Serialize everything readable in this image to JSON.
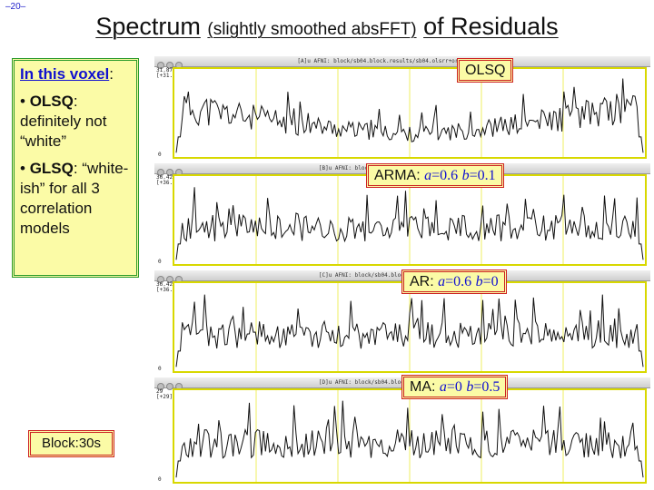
{
  "page_number": "–20–",
  "title": {
    "main": "Spectrum",
    "sub": "(slightly smoothed absFFT)",
    "tail": "of Residuals"
  },
  "note": {
    "heading": "In this voxel",
    "heading_suffix": ":",
    "items": [
      {
        "bold": "OLSQ",
        "text": ": definitely not “white”"
      },
      {
        "bold": "GLSQ",
        "text": ": “white-ish” for all 3 correlation models"
      }
    ]
  },
  "block_label": "Block:30s",
  "panels": [
    {
      "window_title": "[A]u AFNI: block/sb04.block.results/sb04.olsrr+orig & stats.sb04",
      "y_max": "31.875",
      "y_max_paren": "[+31.875]",
      "y_zero": "0",
      "label": {
        "name": "OLSQ",
        "params": []
      },
      "seed": 11
    },
    {
      "window_title": "[B]u AFNI: block/sb04.block.results/sb04.errts+orig",
      "y_max": "36.42857",
      "y_max_paren": "[+36.42857]",
      "y_zero": "0",
      "label": {
        "name": "ARMA: ",
        "params": [
          {
            "var": "a",
            "val": "=0.6"
          },
          {
            "var": "b",
            "val": "=0.1"
          }
        ]
      },
      "seed": 23
    },
    {
      "window_title": "[C]u AFNI: block/sb04.block.results/sb04.errts+orig",
      "y_max": "36.42857",
      "y_max_paren": "[+36.42857]",
      "y_zero": "0",
      "label": {
        "name": "AR: ",
        "params": [
          {
            "var": "a",
            "val": "=0.6"
          },
          {
            "var": "b",
            "val": "=0"
          }
        ]
      },
      "seed": 37
    },
    {
      "window_title": "[D]u AFNI: block/sb04.block.results/sb04.errts+orig",
      "y_max": "29",
      "y_max_paren": "[+29]",
      "y_zero": "0",
      "label": {
        "name": "MA: ",
        "params": [
          {
            "var": "a",
            "val": "=0"
          },
          {
            "var": "b",
            "val": "=0.5"
          }
        ]
      },
      "seed": 53
    }
  ],
  "colors": {
    "note_bg": "#fbfba6",
    "note_border": "#2a9a2a",
    "label_border": "#cc2222",
    "plot_frame": "#d8d800",
    "param_blue": "#1010d0"
  }
}
